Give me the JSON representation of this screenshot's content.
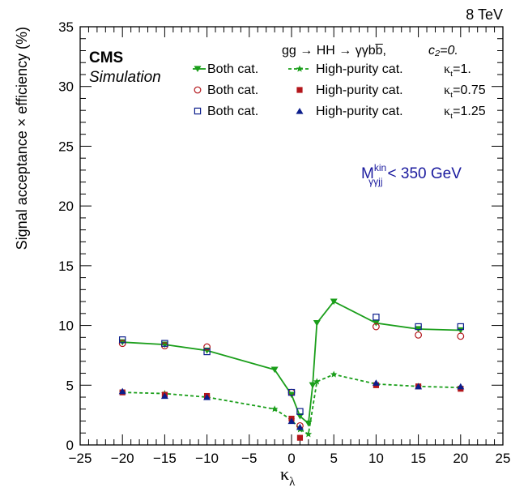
{
  "chart_data": {
    "type": "line",
    "energy_label": "8 TeV",
    "experiment": "CMS",
    "experiment_sub": "Simulation",
    "process_label": "gg → HH → γγbb̅,",
    "c2_label": "c₂=0.",
    "cut_label": "Mᵏⁱⁿγγjj < 350 GeV",
    "cut_main": "M",
    "cut_sup": "kin",
    "cut_sub": "γγjj",
    "cut_rest": "< 350 GeV",
    "xlabel": "κλ",
    "xlabel_main": "κ",
    "xlabel_sub": "λ",
    "ylabel": "Signal acceptance × efficiency (%)",
    "xlim": [
      -25,
      25
    ],
    "ylim": [
      0,
      35
    ],
    "x_ticks": [
      -25,
      -20,
      -15,
      -10,
      -5,
      0,
      5,
      10,
      15,
      20,
      25
    ],
    "x_tick_labels": [
      "−25",
      "−20",
      "−15",
      "−10",
      "−5",
      "0",
      "5",
      "10",
      "15",
      "20",
      "25"
    ],
    "y_ticks": [
      0,
      5,
      10,
      15,
      20,
      25,
      30,
      35
    ],
    "y_tick_labels": [
      "0",
      "5",
      "10",
      "15",
      "20",
      "25",
      "30",
      "35"
    ],
    "grid": false,
    "legend_position": "top-right",
    "colors": {
      "green": "#1a9e1a",
      "red": "#b3161b",
      "blue": "#0c1e8c",
      "cut_text": "#1a1a9e"
    },
    "series": [
      {
        "name": "Both cat.",
        "kt_label": "κₗ=1.",
        "kt_sub": "t",
        "kt_value": "=1.",
        "marker": "triangle-down",
        "line": "solid",
        "color": "#1a9e1a",
        "x": [
          -20,
          -15,
          -10,
          -2,
          0,
          1,
          2,
          2.5,
          3,
          5,
          10,
          15,
          20
        ],
        "y": [
          8.6,
          8.4,
          7.9,
          6.3,
          4.2,
          2.4,
          1.8,
          5.0,
          10.2,
          12.0,
          10.2,
          9.7,
          9.6
        ]
      },
      {
        "name": "High-purity cat.",
        "kt_sub": "t",
        "kt_value": "=1.",
        "marker": "star",
        "line": "dashed",
        "color": "#1a9e1a",
        "x": [
          -20,
          -15,
          -10,
          -2,
          0,
          1,
          2,
          3,
          5,
          10,
          15,
          20
        ],
        "y": [
          4.4,
          4.3,
          4.0,
          3.0,
          2.1,
          1.3,
          0.9,
          5.3,
          5.9,
          5.1,
          4.9,
          4.8
        ]
      },
      {
        "name": "Both cat.",
        "kt_sub": "t",
        "kt_value": "=0.75",
        "marker": "open-circle",
        "color": "#b3161b",
        "x": [
          -20,
          -15,
          -10,
          0,
          1,
          10,
          15,
          20
        ],
        "y": [
          8.5,
          8.3,
          8.2,
          4.4,
          1.6,
          9.9,
          9.2,
          9.1
        ]
      },
      {
        "name": "High-purity cat.",
        "kt_sub": "t",
        "kt_value": "=0.75",
        "marker": "filled-square",
        "color": "#b3161b",
        "x": [
          -20,
          -15,
          -10,
          0,
          1,
          10,
          15,
          20
        ],
        "y": [
          4.4,
          4.2,
          4.1,
          2.2,
          0.6,
          5.0,
          4.9,
          4.7
        ]
      },
      {
        "name": "Both cat.",
        "kt_sub": "t",
        "kt_value": "=1.25",
        "marker": "open-square",
        "color": "#0c1e8c",
        "x": [
          -20,
          -15,
          -10,
          0,
          1,
          10,
          15,
          20
        ],
        "y": [
          8.8,
          8.5,
          7.8,
          4.4,
          2.8,
          10.7,
          9.9,
          9.9
        ]
      },
      {
        "name": "High-purity cat.",
        "kt_sub": "t",
        "kt_value": "=1.25",
        "marker": "filled-triangle-up",
        "color": "#0c1e8c",
        "x": [
          -20,
          -15,
          -10,
          0,
          1,
          10,
          15,
          20
        ],
        "y": [
          4.5,
          4.1,
          4.0,
          2.0,
          1.5,
          5.2,
          4.9,
          4.9
        ]
      }
    ]
  }
}
